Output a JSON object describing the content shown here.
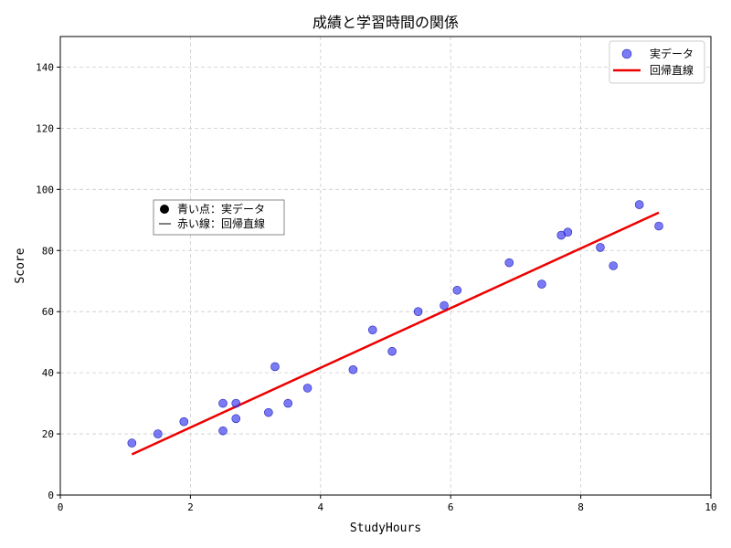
{
  "chart_data": {
    "type": "scatter",
    "title": "成績と学習時間の関係",
    "xlabel": "StudyHours",
    "ylabel": "Score",
    "xlim": [
      0,
      10
    ],
    "ylim": [
      0,
      150
    ],
    "xticks": [
      0,
      2,
      4,
      6,
      8,
      10
    ],
    "yticks": [
      0,
      20,
      40,
      60,
      80,
      100,
      120,
      140
    ],
    "grid": true,
    "legend_position": "top-right",
    "series": [
      {
        "name": "実データ",
        "kind": "scatter",
        "color": "#3333ee",
        "points": [
          [
            1.1,
            17
          ],
          [
            1.5,
            20
          ],
          [
            1.9,
            24
          ],
          [
            2.5,
            21
          ],
          [
            2.5,
            30
          ],
          [
            2.7,
            25
          ],
          [
            2.7,
            30
          ],
          [
            3.2,
            27
          ],
          [
            3.3,
            42
          ],
          [
            3.5,
            30
          ],
          [
            3.8,
            35
          ],
          [
            4.5,
            41
          ],
          [
            4.8,
            54
          ],
          [
            5.1,
            47
          ],
          [
            5.5,
            60
          ],
          [
            5.9,
            62
          ],
          [
            6.1,
            67
          ],
          [
            6.9,
            76
          ],
          [
            7.4,
            69
          ],
          [
            7.7,
            85
          ],
          [
            7.8,
            86
          ],
          [
            8.3,
            81
          ],
          [
            8.5,
            75
          ],
          [
            8.9,
            95
          ],
          [
            9.2,
            88
          ]
        ]
      },
      {
        "name": "回帰直線",
        "kind": "line",
        "color": "#ee0000",
        "points": [
          [
            1.1,
            13.3
          ],
          [
            9.2,
            92.4
          ]
        ]
      }
    ],
    "annotation": {
      "lines": [
        "青い点：実データ",
        "赤い線：回帰直線"
      ]
    }
  }
}
